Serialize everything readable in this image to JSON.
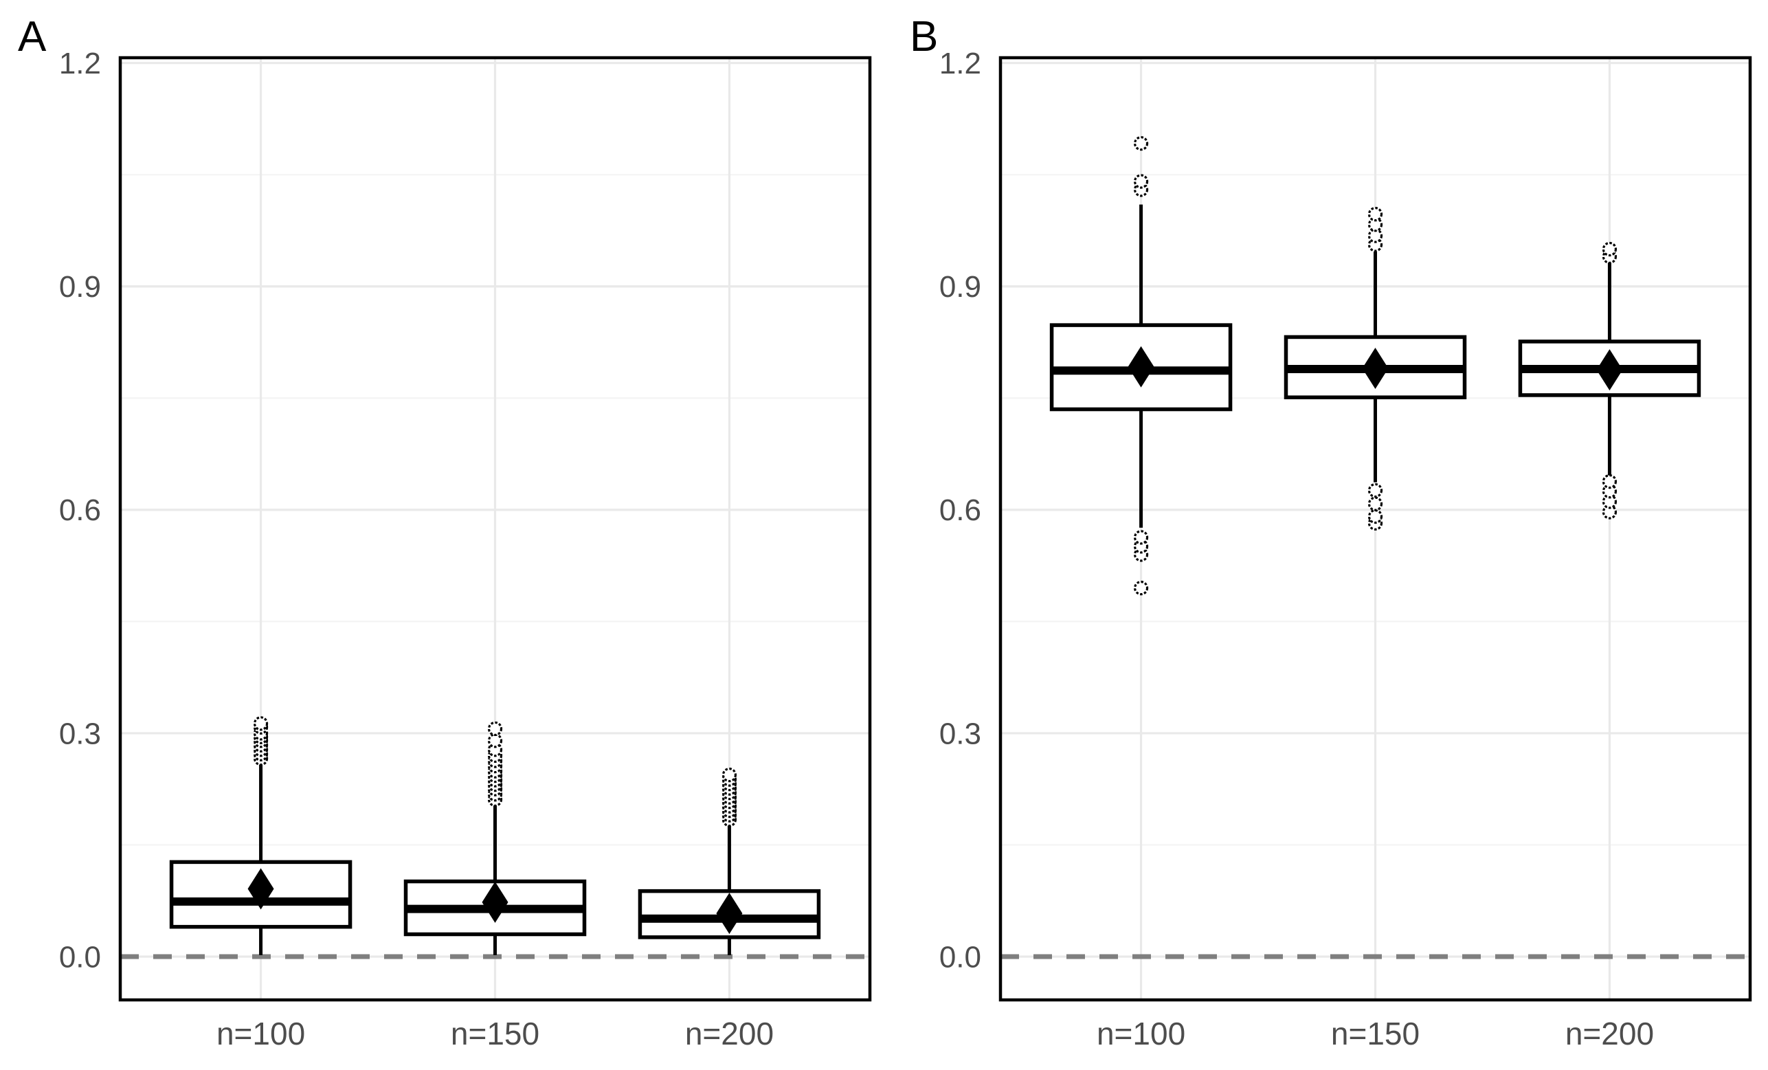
{
  "figure": {
    "background": "#ffffff",
    "panel_labels": [
      "A",
      "B"
    ]
  },
  "colors": {
    "panel_border": "#000000",
    "box_stroke": "#000000",
    "box_fill": "#ffffff",
    "mean_marker": "#000000",
    "grid_major": "#e9e9e9",
    "grid_minor": "#f4f4f4",
    "axis_text": "#4d4d4d",
    "panel_label_text": "#000000",
    "reference_line": "#7f7f7f",
    "background": "#ffffff"
  },
  "chart_data": [
    {
      "type": "boxplot",
      "panel_label": "A",
      "categories": [
        "n=100",
        "n=150",
        "n=200"
      ],
      "x_tick_labels": [
        "n=100",
        "n=150",
        "n=200"
      ],
      "y_tick_labels": [
        "0.0",
        "0.3",
        "0.6",
        "0.9",
        "1.2"
      ],
      "y_ticks": [
        0.0,
        0.3,
        0.6,
        0.9,
        1.2
      ],
      "y_minor_ticks": [
        0.15,
        0.45,
        0.75,
        1.05
      ],
      "ylim": [
        -0.058,
        1.207
      ],
      "grid": true,
      "reference_line": {
        "y": 0.0,
        "style": "dashed"
      },
      "mean_marker": "filled-diamond",
      "series": [
        {
          "category": "n=100",
          "q1": 0.04,
          "median": 0.074,
          "q3": 0.127,
          "mean": 0.091,
          "whisker_low": 0.002,
          "whisker_high": 0.262,
          "outliers": [
            0.266,
            0.272,
            0.278,
            0.284,
            0.29,
            0.295,
            0.3,
            0.308,
            0.313
          ]
        },
        {
          "category": "n=150",
          "q1": 0.03,
          "median": 0.064,
          "q3": 0.101,
          "mean": 0.073,
          "whisker_low": 0.002,
          "whisker_high": 0.205,
          "outliers": [
            0.211,
            0.218,
            0.225,
            0.231,
            0.237,
            0.243,
            0.249,
            0.256,
            0.263,
            0.27,
            0.278,
            0.29,
            0.306
          ]
        },
        {
          "category": "n=200",
          "q1": 0.026,
          "median": 0.051,
          "q3": 0.088,
          "mean": 0.058,
          "whisker_low": 0.002,
          "whisker_high": 0.179,
          "outliers": [
            0.184,
            0.19,
            0.196,
            0.202,
            0.208,
            0.214,
            0.22,
            0.226,
            0.232,
            0.238,
            0.244
          ]
        }
      ]
    },
    {
      "type": "boxplot",
      "panel_label": "B",
      "categories": [
        "n=100",
        "n=150",
        "n=200"
      ],
      "x_tick_labels": [
        "n=100",
        "n=150",
        "n=200"
      ],
      "y_tick_labels": [
        "0.0",
        "0.3",
        "0.6",
        "0.9",
        "1.2"
      ],
      "y_ticks": [
        0.0,
        0.3,
        0.6,
        0.9,
        1.2
      ],
      "y_minor_ticks": [
        0.15,
        0.45,
        0.75,
        1.05
      ],
      "ylim": [
        -0.058,
        1.207
      ],
      "grid": true,
      "reference_line": {
        "y": 0.0,
        "style": "dashed"
      },
      "mean_marker": "filled-diamond",
      "series": [
        {
          "category": "n=100",
          "q1": 0.735,
          "median": 0.787,
          "q3": 0.848,
          "mean": 0.792,
          "whisker_low": 0.576,
          "whisker_high": 1.01,
          "outliers": [
            0.495,
            0.54,
            0.551,
            0.563,
            1.03,
            1.041,
            1.092
          ]
        },
        {
          "category": "n=150",
          "q1": 0.751,
          "median": 0.789,
          "q3": 0.832,
          "mean": 0.79,
          "whisker_low": 0.637,
          "whisker_high": 0.947,
          "outliers": [
            0.582,
            0.591,
            0.608,
            0.626,
            0.956,
            0.968,
            0.983,
            0.997
          ]
        },
        {
          "category": "n=200",
          "q1": 0.754,
          "median": 0.789,
          "q3": 0.826,
          "mean": 0.788,
          "whisker_low": 0.643,
          "whisker_high": 0.935,
          "outliers": [
            0.597,
            0.611,
            0.625,
            0.638,
            0.94,
            0.95
          ]
        }
      ]
    }
  ]
}
